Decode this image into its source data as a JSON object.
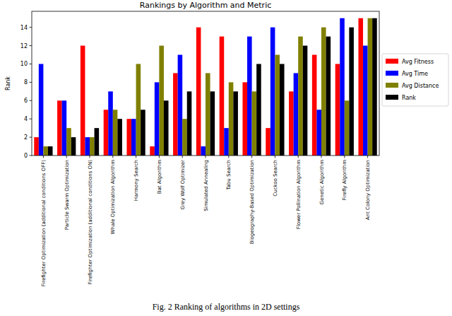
{
  "chart_data": {
    "type": "bar",
    "title": "Rankings by Algorithm and Metric",
    "y_label": "Rank",
    "caption": "Fig. 2 Ranking of algorithms in 2D settings",
    "categories": [
      "Firefighter Optimization (additional conditions OFF)",
      "Particle Swarm Optimization",
      "Firefighter Optimization (additional conditions ON)",
      "Whale Optimization Algorithm",
      "Harmony Search",
      "Bat Algorithm",
      "Grey Wolf Optimizer",
      "Simulated Annealing",
      "Tabu Search",
      "Biogeography-Based Optimization",
      "Cuckoo Search",
      "Flower Pollination Algorithm",
      "Genetic Algorithm",
      "Firefly Algorithm",
      "Ant Colony Optimization"
    ],
    "series": [
      {
        "name": "Avg Fitness",
        "color": "#ff0000",
        "values": [
          2,
          6,
          12,
          5,
          4,
          1,
          9,
          14,
          13,
          8,
          3,
          7,
          11,
          10,
          15
        ]
      },
      {
        "name": "Avg Time",
        "color": "#0000ff",
        "values": [
          10,
          6,
          2,
          7,
          4,
          8,
          11,
          1,
          3,
          13,
          14,
          9,
          5,
          15,
          12
        ]
      },
      {
        "name": "Avg Distance",
        "color": "#808000",
        "values": [
          1,
          3,
          2,
          5,
          10,
          12,
          4,
          9,
          8,
          7,
          11,
          13,
          14,
          6,
          15
        ]
      },
      {
        "name": "Rank",
        "color": "#000000",
        "values": [
          1,
          2,
          3,
          4,
          5,
          6,
          7,
          7,
          7,
          10,
          10,
          12,
          13,
          14,
          15
        ]
      }
    ],
    "ylim": [
      0,
      15.75
    ],
    "yticks": [
      0,
      2,
      4,
      6,
      8,
      10,
      12,
      14
    ],
    "grid": false,
    "legend": "right"
  }
}
